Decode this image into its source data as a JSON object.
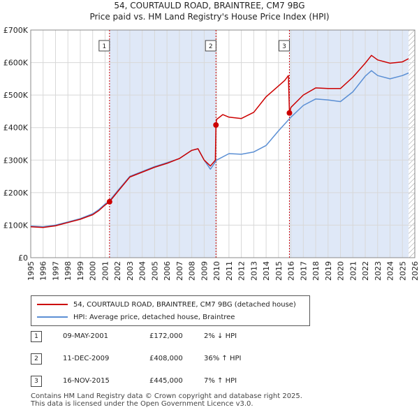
{
  "header": {
    "title": "54, COURTAULD ROAD, BRAINTREE, CM7 9BG",
    "subtitle": "Price paid vs. HM Land Registry's House Price Index (HPI)"
  },
  "legend": {
    "property_label": "54, COURTAULD ROAD, BRAINTREE, CM7 9BG (detached house)",
    "hpi_label": "HPI: Average price, detached house, Braintree"
  },
  "transactions": [
    {
      "num": "1",
      "date": "09-MAY-2001",
      "price": "£172,000",
      "hpi": "2% ↓ HPI"
    },
    {
      "num": "2",
      "date": "11-DEC-2009",
      "price": "£408,000",
      "hpi": "36% ↑ HPI"
    },
    {
      "num": "3",
      "date": "16-NOV-2015",
      "price": "£445,000",
      "hpi": "7% ↑ HPI"
    }
  ],
  "footer": {
    "line1": "Contains HM Land Registry data © Crown copyright and database right 2025.",
    "line2": "This data is licensed under the Open Government Licence v3.0."
  },
  "chart_data": {
    "type": "line",
    "xlim": [
      1995,
      2026
    ],
    "ylim": [
      0,
      700000
    ],
    "yticks": [
      0,
      100000,
      200000,
      300000,
      400000,
      500000,
      600000,
      700000
    ],
    "ytick_labels": [
      "£0",
      "£100K",
      "£200K",
      "£300K",
      "£400K",
      "£500K",
      "£600K",
      "£700K"
    ],
    "xticks": [
      1995,
      1996,
      1997,
      1998,
      1999,
      2000,
      2001,
      2002,
      2003,
      2004,
      2005,
      2006,
      2007,
      2008,
      2009,
      2010,
      2011,
      2012,
      2013,
      2014,
      2015,
      2016,
      2017,
      2018,
      2019,
      2020,
      2021,
      2022,
      2023,
      2024,
      2025,
      2026
    ],
    "grid": true,
    "colors": {
      "property": "#cc0000",
      "hpi": "#5b8fd4",
      "shade": "#dfe8f7",
      "marker_line": "#cc0000",
      "hatch": "#999999"
    },
    "shaded_spans": [
      [
        2001.36,
        2009.95
      ],
      [
        2015.88,
        2025.5
      ]
    ],
    "future_hatch_from": 2025.5,
    "series": [
      {
        "name": "54, COURTAULD ROAD, BRAINTREE, CM7 9BG (detached house)",
        "key": "property",
        "x": [
          1995,
          1996,
          1997,
          1998,
          1999,
          2000,
          2000.5,
          2001,
          2001.36,
          2002,
          2003,
          2004,
          2005,
          2006,
          2007,
          2008,
          2008.5,
          2009,
          2009.5,
          2009.9,
          2009.95,
          2010,
          2010.5,
          2011,
          2012,
          2013,
          2014,
          2015,
          2015.5,
          2015.8,
          2015.88,
          2016,
          2017,
          2018,
          2019,
          2020,
          2021,
          2022,
          2022.5,
          2023,
          2024,
          2025,
          2025.5
        ],
        "values": [
          95000,
          93000,
          98000,
          108000,
          118000,
          132000,
          145000,
          162000,
          172000,
          202000,
          248000,
          263000,
          278000,
          290000,
          305000,
          330000,
          335000,
          300000,
          282000,
          300000,
          408000,
          425000,
          440000,
          432000,
          428000,
          447000,
          495000,
          528000,
          545000,
          560000,
          445000,
          462000,
          500000,
          522000,
          520000,
          520000,
          555000,
          598000,
          622000,
          608000,
          598000,
          602000,
          612000
        ]
      },
      {
        "name": "HPI: Average price, detached house, Braintree",
        "key": "hpi",
        "x": [
          1995,
          1996,
          1997,
          1998,
          1999,
          2000,
          2000.5,
          2001,
          2001.36,
          2002,
          2003,
          2004,
          2005,
          2006,
          2007,
          2008,
          2008.5,
          2009,
          2009.5,
          2010,
          2011,
          2012,
          2013,
          2014,
          2015,
          2016,
          2017,
          2018,
          2019,
          2020,
          2021,
          2022,
          2022.5,
          2023,
          2024,
          2025,
          2025.5
        ],
        "values": [
          97000,
          95000,
          100000,
          110000,
          120000,
          135000,
          148000,
          165000,
          175000,
          205000,
          250000,
          265000,
          280000,
          292000,
          305000,
          330000,
          335000,
          300000,
          272000,
          300000,
          320000,
          318000,
          325000,
          345000,
          390000,
          432000,
          468000,
          488000,
          485000,
          480000,
          510000,
          558000,
          575000,
          560000,
          550000,
          560000,
          568000
        ]
      }
    ],
    "sale_points": [
      {
        "num": "1",
        "x": 2001.36,
        "value": 172000
      },
      {
        "num": "2",
        "x": 2009.95,
        "value": 408000
      },
      {
        "num": "3",
        "x": 2015.88,
        "value": 445000
      }
    ]
  }
}
